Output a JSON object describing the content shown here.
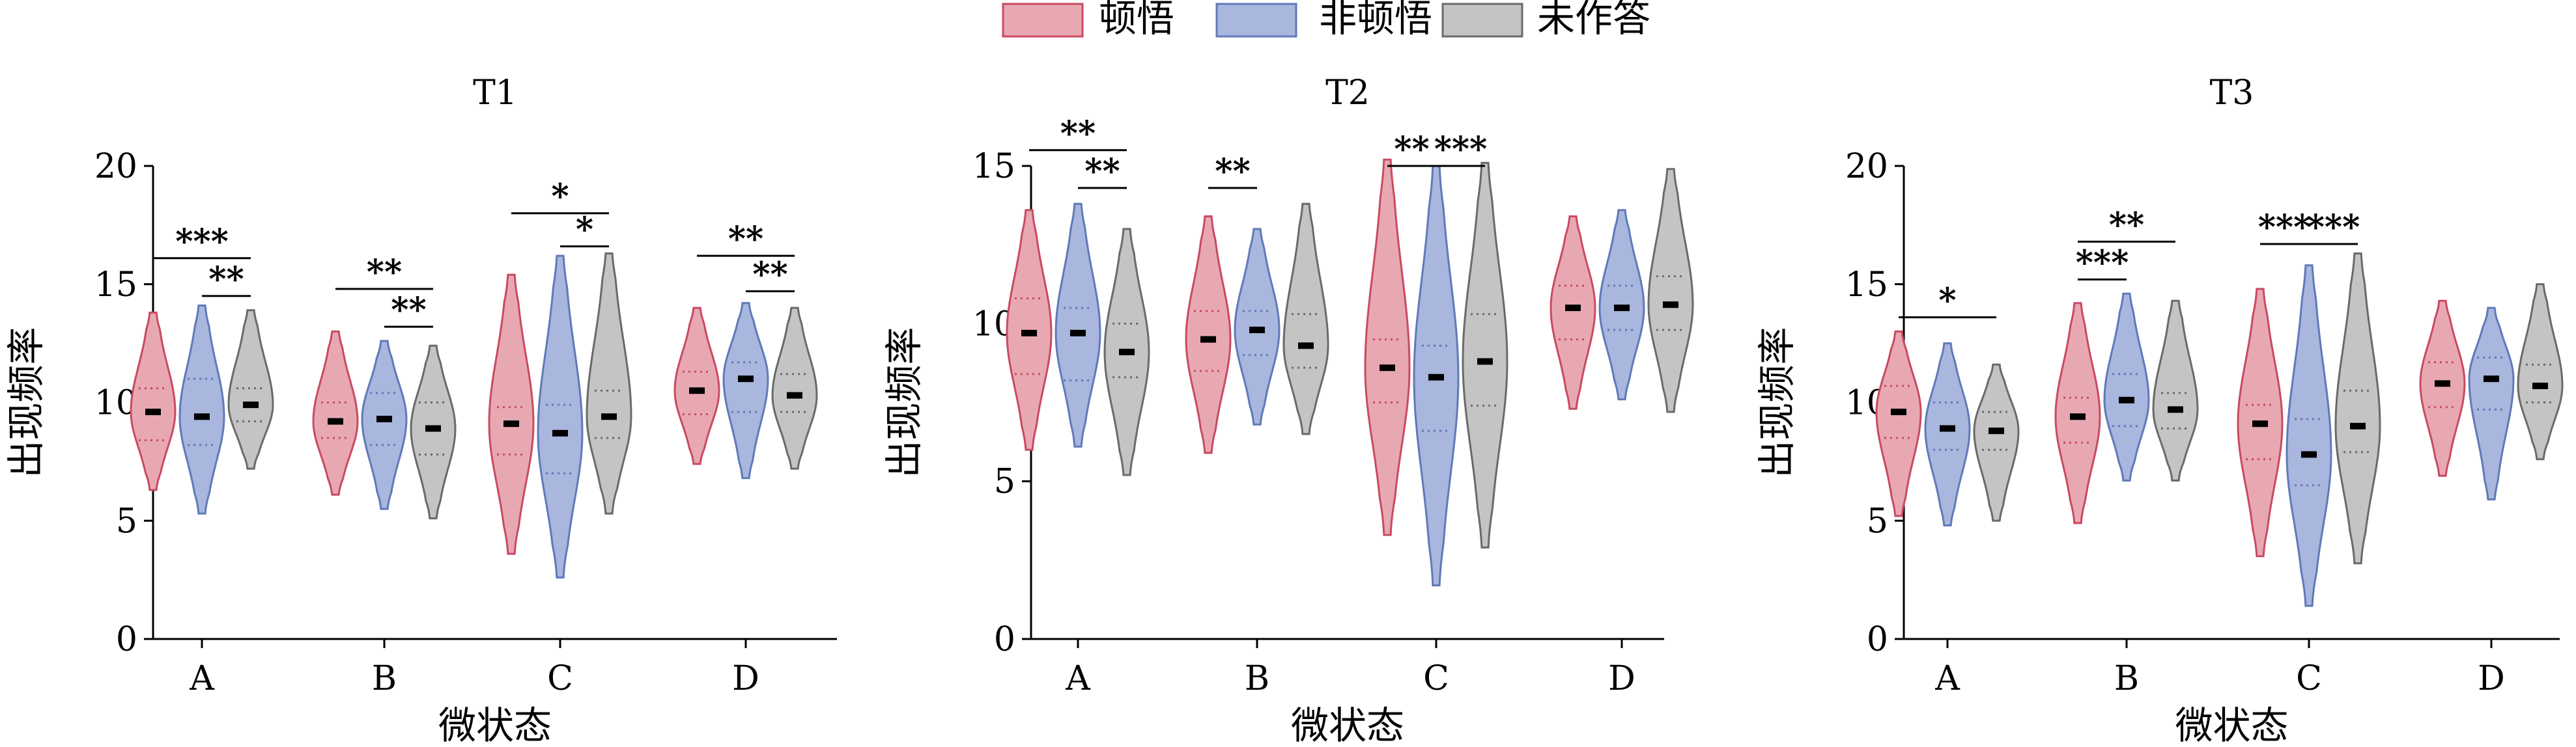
{
  "legend": {
    "items": [
      {
        "label": "顿悟",
        "fill": "#e8a8b2",
        "stroke": "#c94a62"
      },
      {
        "label": "非顿悟",
        "fill": "#a9b6dd",
        "stroke": "#5f7ab8"
      },
      {
        "label": "未作答",
        "fill": "#c4c4c4",
        "stroke": "#6a6a6a"
      }
    ]
  },
  "chart_data": [
    {
      "type": "violin",
      "title": "T1",
      "xlabel": "微状态",
      "ylabel": "出现频率",
      "ylim": [
        0,
        20
      ],
      "yticks": [
        "0",
        "5",
        "10",
        "15",
        "20"
      ],
      "categories": [
        "A",
        "B",
        "C",
        "D"
      ],
      "series": [
        {
          "name": "顿悟",
          "medians": [
            9.6,
            9.2,
            9.1,
            10.5
          ],
          "q1": [
            8.4,
            8.5,
            7.8,
            9.5
          ],
          "q3": [
            10.6,
            10.0,
            9.8,
            11.3
          ],
          "mins": [
            6.3,
            6.1,
            3.6,
            7.4
          ],
          "maxs": [
            13.8,
            13.0,
            15.4,
            14.0
          ]
        },
        {
          "name": "非顿悟",
          "medians": [
            9.4,
            9.3,
            8.7,
            11.0
          ],
          "q1": [
            8.2,
            8.2,
            7.0,
            9.6
          ],
          "q3": [
            11.0,
            10.4,
            9.9,
            11.7
          ],
          "mins": [
            5.3,
            5.5,
            2.6,
            6.8
          ],
          "maxs": [
            14.1,
            12.6,
            16.2,
            14.2
          ]
        },
        {
          "name": "未作答",
          "medians": [
            9.9,
            8.9,
            9.4,
            10.3
          ],
          "q1": [
            9.2,
            7.8,
            8.5,
            9.6
          ],
          "q3": [
            10.6,
            10.0,
            10.5,
            11.2
          ],
          "mins": [
            7.2,
            5.1,
            5.3,
            7.2
          ],
          "maxs": [
            13.9,
            12.4,
            16.3,
            14.0
          ]
        }
      ],
      "annotations": [
        {
          "text": "***",
          "category": "A",
          "from_series": 0,
          "to_series": 2,
          "y": 16.1
        },
        {
          "text": "**",
          "category": "A",
          "from_series": 1,
          "to_series": 2,
          "y": 14.5
        },
        {
          "text": "**",
          "category": "B",
          "from_series": 0,
          "to_series": 2,
          "y": 14.8
        },
        {
          "text": "**",
          "category": "B",
          "from_series": 1,
          "to_series": 2,
          "y": 13.2
        },
        {
          "text": "*",
          "category": "C",
          "from_series": 0,
          "to_series": 2,
          "y": 18.0
        },
        {
          "text": "*",
          "category": "C",
          "from_series": 1,
          "to_series": 2,
          "y": 16.6
        },
        {
          "text": "**",
          "category": "D",
          "from_series": 0,
          "to_series": 2,
          "y": 16.2
        },
        {
          "text": "**",
          "category": "D",
          "from_series": 1,
          "to_series": 2,
          "y": 14.7
        }
      ]
    },
    {
      "type": "violin",
      "title": "T2",
      "xlabel": "微状态",
      "ylabel": "出现频率",
      "ylim": [
        0,
        15
      ],
      "yticks": [
        "0",
        "5",
        "10",
        "15"
      ],
      "categories": [
        "A",
        "B",
        "C",
        "D"
      ],
      "series": [
        {
          "name": "顿悟",
          "medians": [
            9.7,
            9.5,
            8.6,
            10.5
          ],
          "q1": [
            8.4,
            8.5,
            7.5,
            9.5
          ],
          "q3": [
            10.8,
            10.4,
            9.5,
            11.2
          ],
          "mins": [
            6.0,
            5.9,
            3.3,
            7.3
          ],
          "maxs": [
            13.6,
            13.4,
            15.2,
            13.4
          ]
        },
        {
          "name": "非顿悟",
          "medians": [
            9.7,
            9.8,
            8.3,
            10.5
          ],
          "q1": [
            8.2,
            9.0,
            6.6,
            9.8
          ],
          "q3": [
            10.5,
            10.4,
            9.3,
            11.2
          ],
          "mins": [
            6.1,
            6.8,
            1.7,
            7.6
          ],
          "maxs": [
            13.8,
            13.0,
            15.0,
            13.6
          ]
        },
        {
          "name": "未作答",
          "medians": [
            9.1,
            9.3,
            8.8,
            10.6
          ],
          "q1": [
            8.3,
            8.6,
            7.4,
            9.8
          ],
          "q3": [
            10.0,
            10.3,
            10.3,
            11.5
          ],
          "mins": [
            5.2,
            6.5,
            2.9,
            7.2
          ],
          "maxs": [
            13.0,
            13.8,
            15.1,
            14.9
          ]
        }
      ],
      "annotations": [
        {
          "text": "**",
          "category": "A",
          "from_series": 0,
          "to_series": 2,
          "y": 15.5
        },
        {
          "text": "**",
          "category": "A",
          "from_series": 1,
          "to_series": 2,
          "y": 14.3
        },
        {
          "text": "**",
          "category": "B",
          "from_series": 0,
          "to_series": 1,
          "y": 14.3
        },
        {
          "text": "**",
          "category": "C",
          "from_series": 0,
          "to_series": 1,
          "y": 15.0
        },
        {
          "text": "***",
          "category": "C",
          "from_series": 1,
          "to_series": 2,
          "y": 15.0
        }
      ]
    },
    {
      "type": "violin",
      "title": "T3",
      "xlabel": "微状态",
      "ylabel": "出现频率",
      "ylim": [
        0,
        20
      ],
      "yticks": [
        "0",
        "5",
        "10",
        "15",
        "20"
      ],
      "categories": [
        "A",
        "B",
        "C",
        "D"
      ],
      "series": [
        {
          "name": "顿悟",
          "medians": [
            9.6,
            9.4,
            9.1,
            10.8
          ],
          "q1": [
            8.5,
            8.3,
            7.6,
            9.8
          ],
          "q3": [
            10.7,
            10.2,
            9.9,
            11.7
          ],
          "mins": [
            5.2,
            4.9,
            3.5,
            6.9
          ],
          "maxs": [
            13.0,
            14.2,
            14.8,
            14.3
          ]
        },
        {
          "name": "非顿悟",
          "medians": [
            8.9,
            10.1,
            7.8,
            11.0
          ],
          "q1": [
            8.0,
            9.0,
            6.5,
            9.7
          ],
          "q3": [
            10.0,
            11.2,
            9.3,
            11.9
          ],
          "mins": [
            4.8,
            6.7,
            1.4,
            5.9
          ],
          "maxs": [
            12.5,
            14.6,
            15.8,
            14.0
          ]
        },
        {
          "name": "未作答",
          "medians": [
            8.8,
            9.7,
            9.0,
            10.7
          ],
          "q1": [
            8.0,
            8.9,
            7.9,
            10.0
          ],
          "q3": [
            9.6,
            10.4,
            10.5,
            11.6
          ],
          "mins": [
            5.0,
            6.7,
            3.2,
            7.6
          ],
          "maxs": [
            11.6,
            14.3,
            16.3,
            15.0
          ]
        }
      ],
      "annotations": [
        {
          "text": "*",
          "category": "A",
          "from_series": 0,
          "to_series": 2,
          "y": 13.6
        },
        {
          "text": "***",
          "category": "B",
          "from_series": 0,
          "to_series": 1,
          "y": 15.2
        },
        {
          "text": "**",
          "category": "B",
          "from_series": 0,
          "to_series": 2,
          "y": 16.8
        },
        {
          "text": "***",
          "category": "C",
          "from_series": 0,
          "to_series": 1,
          "y": 16.7
        },
        {
          "text": "***",
          "category": "C",
          "from_series": 1,
          "to_series": 2,
          "y": 16.7
        }
      ]
    }
  ]
}
